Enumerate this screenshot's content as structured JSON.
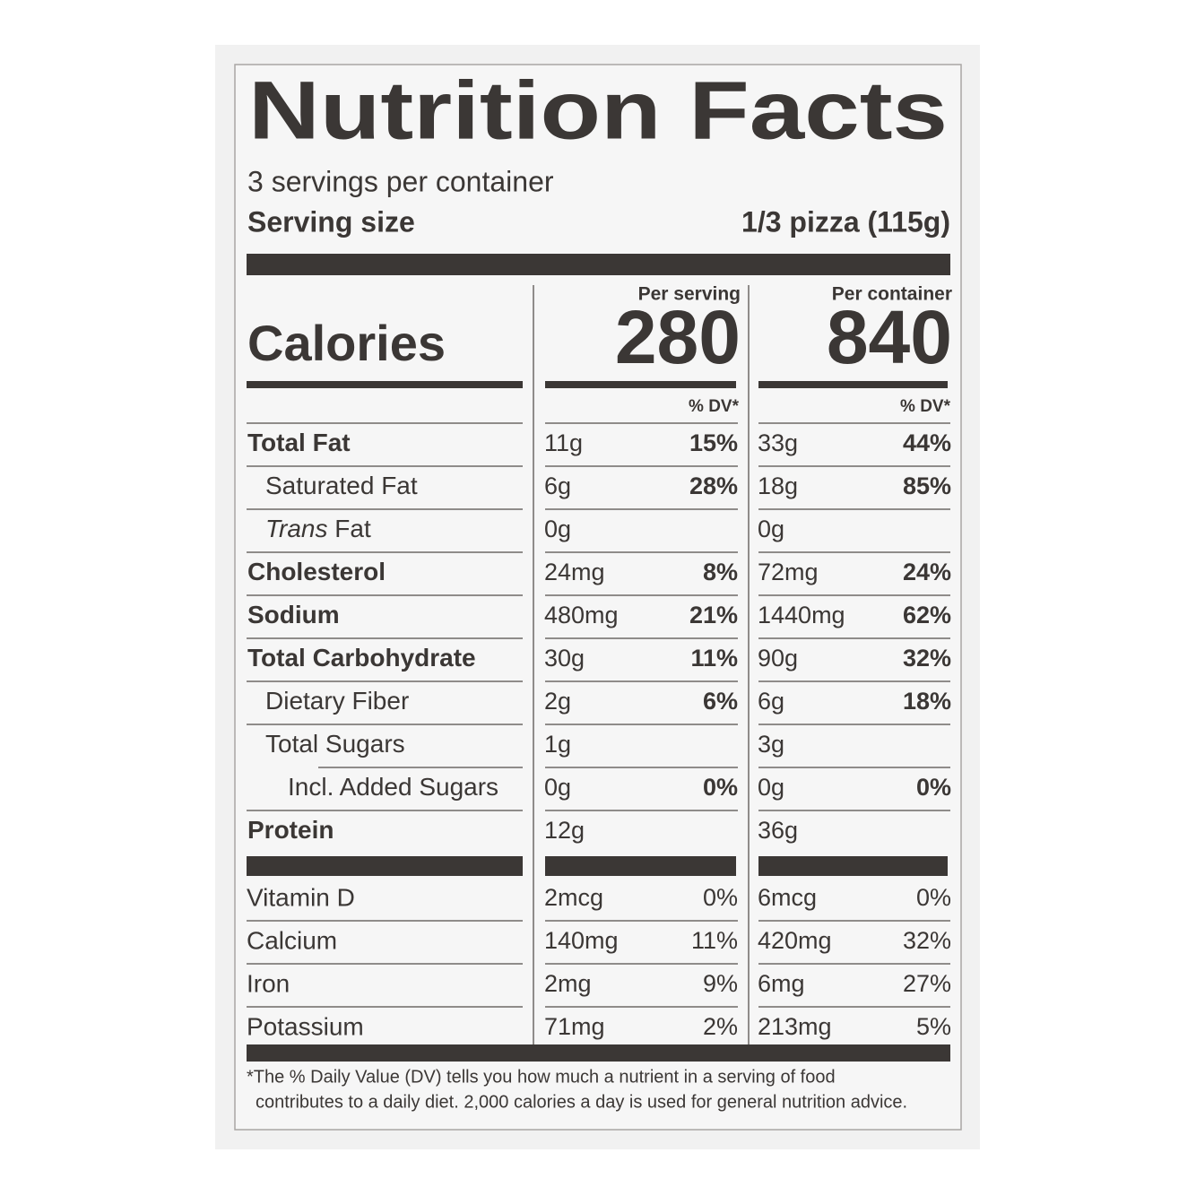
{
  "header": {
    "title": "Nutrition Facts",
    "servings": "3 servings per container",
    "serving_size_label": "Serving size",
    "serving_size_value": "1/3 pizza (115g)"
  },
  "calories": {
    "label": "Calories",
    "per_serving_heading": "Per serving",
    "per_serving": "280",
    "per_container_heading": "Per container",
    "per_container": "840"
  },
  "dv_heading": "% DV*",
  "nutrients": [
    {
      "name": "Total Fat",
      "per_serving": "11g",
      "per_serving_dv": "15%",
      "per_container": "33g",
      "per_container_dv": "44%"
    },
    {
      "name": "Saturated Fat",
      "per_serving": "6g",
      "per_serving_dv": "28%",
      "per_container": "18g",
      "per_container_dv": "85%"
    },
    {
      "name_italic": "Trans",
      "name": "Fat",
      "per_serving": "0g",
      "per_container": "0g"
    },
    {
      "name": "Cholesterol",
      "per_serving": "24mg",
      "per_serving_dv": "8%",
      "per_container": "72mg",
      "per_container_dv": "24%"
    },
    {
      "name": "Sodium",
      "per_serving": "480mg",
      "per_serving_dv": "21%",
      "per_container": "1440mg",
      "per_container_dv": "62%"
    },
    {
      "name": "Total Carbohydrate",
      "per_serving": "30g",
      "per_serving_dv": "11%",
      "per_container": "90g",
      "per_container_dv": "32%"
    },
    {
      "name": "Dietary Fiber",
      "per_serving": "2g",
      "per_serving_dv": "6%",
      "per_container": "6g",
      "per_container_dv": "18%"
    },
    {
      "name": "Total Sugars",
      "per_serving": "1g",
      "per_container": "3g"
    },
    {
      "name": "Incl. Added Sugars",
      "per_serving": "0g",
      "per_serving_dv": "0%",
      "per_container": "0g",
      "per_container_dv": "0%"
    },
    {
      "name": "Protein",
      "per_serving": "12g",
      "per_container": "36g"
    }
  ],
  "vitamins": [
    {
      "name": "Vitamin D",
      "per_serving": "2mcg",
      "per_serving_dv": "0%",
      "per_container": "6mcg",
      "per_container_dv": "0%"
    },
    {
      "name": "Calcium",
      "per_serving": "140mg",
      "per_serving_dv": "11%",
      "per_container": "420mg",
      "per_container_dv": "32%"
    },
    {
      "name": "Iron",
      "per_serving": "2mg",
      "per_serving_dv": "9%",
      "per_container": "6mg",
      "per_container_dv": "27%"
    },
    {
      "name": "Potassium",
      "per_serving": "71mg",
      "per_serving_dv": "2%",
      "per_container": "213mg",
      "per_container_dv": "5%"
    }
  ],
  "footnote": [
    "*The % Daily Value (DV) tells you how much a nutrient in a serving of food",
    "contributes to a daily diet. 2,000 calories a day is used for general nutrition advice."
  ]
}
